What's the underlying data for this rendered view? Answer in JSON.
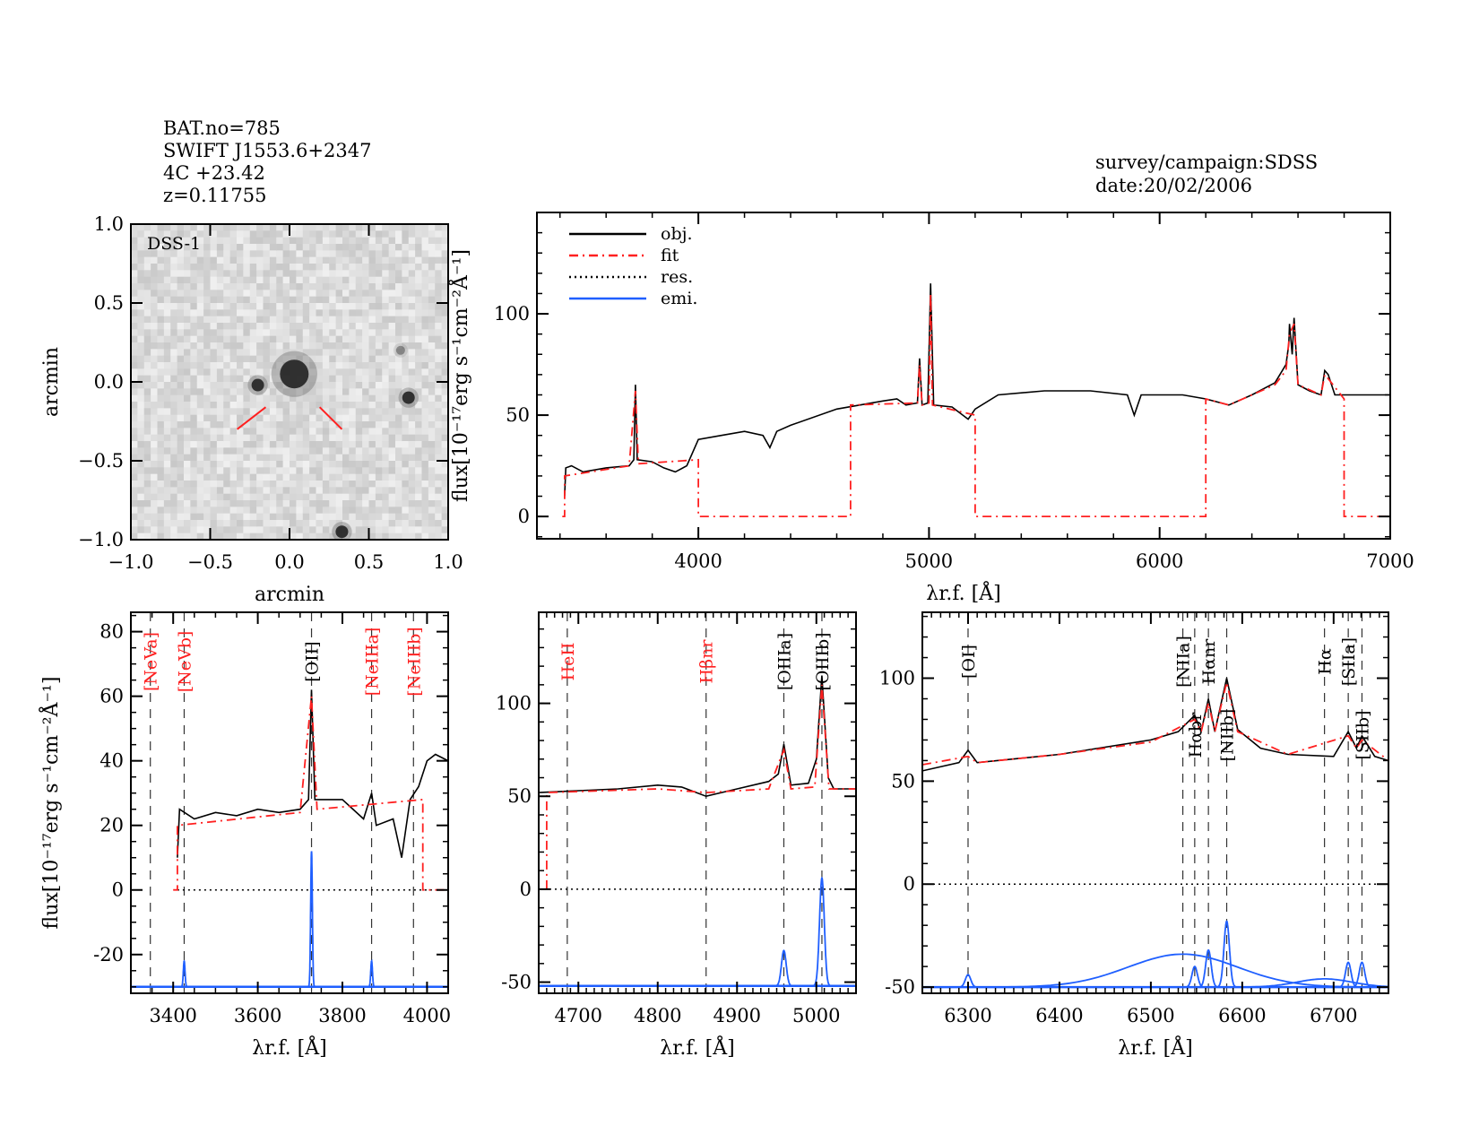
{
  "header": {
    "lines": [
      "BAT.no=785",
      "SWIFT J1553.6+2347",
      "4C +23.42",
      "z=0.11755"
    ],
    "survey": "survey/campaign:SDSS",
    "date": "date:20/02/2006"
  },
  "colors": {
    "obj": "#000000",
    "fit": "#ff2020",
    "res": "#000000",
    "emi": "#1f5fff",
    "red_label": "#ff2020"
  },
  "chart_data": [
    {
      "type": "image",
      "panel": "dss-image",
      "inset_label": "DSS-1",
      "xlabel": "arcmin",
      "ylabel": "arcmin",
      "xlim": [
        -1.0,
        1.0
      ],
      "ylim": [
        -1.0,
        1.0
      ],
      "xticks": [
        "−1.0",
        "−0.5",
        "0.0",
        "0.5",
        "1.0"
      ],
      "yticks": [
        "−1.0",
        "−0.5",
        "0.0",
        "0.5",
        "1.0"
      ],
      "sources": [
        {
          "x": 0.03,
          "y": 0.05,
          "size": "large"
        },
        {
          "x": -0.2,
          "y": -0.02,
          "size": "small"
        },
        {
          "x": 0.75,
          "y": -0.1,
          "size": "small"
        },
        {
          "x": 0.7,
          "y": 0.2,
          "size": "faint"
        },
        {
          "x": 0.33,
          "y": -0.95,
          "size": "small"
        }
      ],
      "markers": "red-tick-marks"
    },
    {
      "type": "line",
      "panel": "full-spectrum",
      "xlabel": "λr.f. [Å]",
      "ylabel": "flux[10⁻¹⁷erg s⁻¹cm⁻²Å⁻¹]",
      "xlim": [
        3300,
        7000
      ],
      "ylim": [
        -11,
        150
      ],
      "xticks": [
        4000,
        5000,
        6000,
        7000
      ],
      "yticks": [
        0,
        50,
        100
      ],
      "legend": {
        "placement": "top-left",
        "entries": [
          {
            "name": "obj.",
            "style": "solid",
            "color": "#000000"
          },
          {
            "name": "fit",
            "style": "dash-dot",
            "color": "#ff2020"
          },
          {
            "name": "res.",
            "style": "dotted",
            "color": "#000000"
          },
          {
            "name": "emi.",
            "style": "solid",
            "color": "#1f5fff"
          }
        ]
      },
      "series": [
        {
          "name": "obj.",
          "points": [
            [
              3420,
              10
            ],
            [
              3425,
              24
            ],
            [
              3450,
              25
            ],
            [
              3500,
              22
            ],
            [
              3600,
              24
            ],
            [
              3700,
              25
            ],
            [
              3720,
              28
            ],
            [
              3727,
              65
            ],
            [
              3735,
              28
            ],
            [
              3800,
              27
            ],
            [
              3850,
              24
            ],
            [
              3900,
              22
            ],
            [
              3950,
              25
            ],
            [
              4000,
              38
            ],
            [
              4100,
              40
            ],
            [
              4200,
              42
            ],
            [
              4280,
              40
            ],
            [
              4310,
              34
            ],
            [
              4340,
              42
            ],
            [
              4400,
              45
            ],
            [
              4600,
              53
            ],
            [
              4800,
              57
            ],
            [
              4861,
              58
            ],
            [
              4900,
              55
            ],
            [
              4950,
              56
            ],
            [
              4959,
              78
            ],
            [
              4970,
              55
            ],
            [
              4995,
              56
            ],
            [
              5007,
              115
            ],
            [
              5020,
              55
            ],
            [
              5100,
              54
            ],
            [
              5170,
              48
            ],
            [
              5200,
              53
            ],
            [
              5300,
              60
            ],
            [
              5500,
              62
            ],
            [
              5700,
              62
            ],
            [
              5860,
              60
            ],
            [
              5890,
              50
            ],
            [
              5920,
              60
            ],
            [
              6100,
              60
            ],
            [
              6200,
              58
            ],
            [
              6300,
              55
            ],
            [
              6400,
              60
            ],
            [
              6500,
              66
            ],
            [
              6548,
              75
            ],
            [
              6560,
              85
            ],
            [
              6563,
              95
            ],
            [
              6575,
              80
            ],
            [
              6583,
              98
            ],
            [
              6600,
              65
            ],
            [
              6650,
              62
            ],
            [
              6700,
              60
            ],
            [
              6716,
              72
            ],
            [
              6731,
              70
            ],
            [
              6760,
              60
            ],
            [
              7000,
              60
            ]
          ]
        },
        {
          "name": "fit",
          "points": [
            [
              3410,
              0
            ],
            [
              3420,
              0
            ],
            [
              3420,
              20
            ],
            [
              3700,
              25
            ],
            [
              3727,
              62
            ],
            [
              3740,
              26
            ],
            [
              4000,
              28
            ],
            [
              4000,
              0
            ],
            [
              4660,
              0
            ],
            [
              4660,
              55
            ],
            [
              4950,
              56
            ],
            [
              4959,
              75
            ],
            [
              4970,
              55
            ],
            [
              5000,
              56
            ],
            [
              5007,
              110
            ],
            [
              5015,
              55
            ],
            [
              5200,
              50
            ],
            [
              5200,
              0
            ],
            [
              6200,
              0
            ],
            [
              6200,
              58
            ],
            [
              6300,
              55
            ],
            [
              6500,
              65
            ],
            [
              6548,
              72
            ],
            [
              6563,
              90
            ],
            [
              6583,
              95
            ],
            [
              6600,
              65
            ],
            [
              6700,
              60
            ],
            [
              6716,
              70
            ],
            [
              6731,
              68
            ],
            [
              6800,
              58
            ],
            [
              6800,
              0
            ],
            [
              7000,
              0
            ]
          ]
        }
      ]
    },
    {
      "type": "line",
      "panel": "zoom-oii",
      "xlabel": "λr.f. [Å]",
      "ylabel": "flux[10⁻¹⁷erg s⁻¹cm⁻²Å⁻¹]",
      "xlim": [
        3300,
        4050
      ],
      "ylim": [
        -32,
        86
      ],
      "xticks": [
        3400,
        3600,
        3800,
        4000
      ],
      "yticks": [
        -20,
        0,
        20,
        40,
        60,
        80
      ],
      "lines": [
        {
          "x": 3346,
          "label": "[NeVa]",
          "color": "red"
        },
        {
          "x": 3426,
          "label": "[NeVb]",
          "color": "red"
        },
        {
          "x": 3727,
          "label": "[OII]",
          "color": "black"
        },
        {
          "x": 3869,
          "label": "[NeIIIa]",
          "color": "red"
        },
        {
          "x": 3968,
          "label": "[NeIIIb]",
          "color": "red"
        }
      ],
      "obj": [
        [
          3410,
          10
        ],
        [
          3415,
          25
        ],
        [
          3450,
          22
        ],
        [
          3500,
          24
        ],
        [
          3550,
          23
        ],
        [
          3600,
          25
        ],
        [
          3650,
          24
        ],
        [
          3700,
          25
        ],
        [
          3720,
          28
        ],
        [
          3727,
          62
        ],
        [
          3735,
          28
        ],
        [
          3800,
          28
        ],
        [
          3850,
          22
        ],
        [
          3869,
          30
        ],
        [
          3880,
          20
        ],
        [
          3920,
          22
        ],
        [
          3940,
          10
        ],
        [
          3960,
          28
        ],
        [
          3980,
          32
        ],
        [
          4000,
          40
        ],
        [
          4020,
          42
        ],
        [
          4050,
          40
        ]
      ],
      "fit": [
        [
          3400,
          0
        ],
        [
          3410,
          0
        ],
        [
          3410,
          20
        ],
        [
          3700,
          24
        ],
        [
          3727,
          60
        ],
        [
          3740,
          25
        ],
        [
          3990,
          28
        ],
        [
          3990,
          0
        ],
        [
          4050,
          0
        ]
      ],
      "res": [
        [
          3410,
          0
        ],
        [
          4050,
          0
        ]
      ],
      "emi": {
        "baseline": -30,
        "lines": [
          {
            "center": 3426,
            "amp": 8,
            "sigma": 2
          },
          {
            "center": 3727,
            "amp": 42,
            "sigma": 2
          },
          {
            "center": 3869,
            "amp": 8,
            "sigma": 2
          }
        ]
      }
    },
    {
      "type": "line",
      "panel": "zoom-oiii",
      "xlabel": "λr.f. [Å]",
      "ylabel": "",
      "xlim": [
        4650,
        5050
      ],
      "ylim": [
        -56,
        149
      ],
      "xticks": [
        4700,
        4800,
        4900,
        5000
      ],
      "yticks": [
        -50,
        0,
        50,
        100
      ],
      "lines": [
        {
          "x": 4686,
          "label": "HeII",
          "color": "red"
        },
        {
          "x": 4861,
          "label": "Hβnr",
          "color": "red"
        },
        {
          "x": 4959,
          "label": "[OIIIa]",
          "color": "black"
        },
        {
          "x": 5007,
          "label": "[OIIIb]",
          "color": "black"
        }
      ],
      "obj": [
        [
          4650,
          52
        ],
        [
          4700,
          53
        ],
        [
          4750,
          54
        ],
        [
          4800,
          56
        ],
        [
          4830,
          55
        ],
        [
          4861,
          50
        ],
        [
          4900,
          54
        ],
        [
          4940,
          58
        ],
        [
          4952,
          62
        ],
        [
          4959,
          78
        ],
        [
          4968,
          56
        ],
        [
          4990,
          57
        ],
        [
          5000,
          70
        ],
        [
          5007,
          115
        ],
        [
          5015,
          60
        ],
        [
          5022,
          54
        ],
        [
          5050,
          54
        ]
      ],
      "fit": [
        [
          4660,
          0
        ],
        [
          4660,
          52
        ],
        [
          4800,
          54
        ],
        [
          4861,
          52
        ],
        [
          4940,
          54
        ],
        [
          4959,
          75
        ],
        [
          4968,
          54
        ],
        [
          4998,
          55
        ],
        [
          5007,
          110
        ],
        [
          5016,
          54
        ],
        [
          5050,
          54
        ]
      ],
      "res": [
        [
          4650,
          0
        ],
        [
          5050,
          0
        ]
      ],
      "emi": {
        "baseline": -52,
        "lines": [
          {
            "center": 4959,
            "amp": 19,
            "sigma": 3
          },
          {
            "center": 5007,
            "amp": 58,
            "sigma": 3
          }
        ]
      }
    },
    {
      "type": "line",
      "panel": "zoom-halpha",
      "xlabel": "λr.f. [Å]",
      "ylabel": "",
      "xlim": [
        6250,
        6760
      ],
      "ylim": [
        -53,
        132
      ],
      "xticks": [
        6300,
        6400,
        6500,
        6600,
        6700
      ],
      "yticks": [
        -50,
        0,
        50,
        100
      ],
      "lines": [
        {
          "x": 6300,
          "label": "[OI]",
          "color": "black"
        },
        {
          "x": 6535,
          "label": "[NIIa]",
          "color": "black"
        },
        {
          "x": 6548,
          "label": "Hαbr",
          "color": "black"
        },
        {
          "x": 6563,
          "label": "Hαnr",
          "color": "black"
        },
        {
          "x": 6583,
          "label": "[NIIb]",
          "color": "black"
        },
        {
          "x": 6690,
          "label": "Hα",
          "color": "black"
        },
        {
          "x": 6716,
          "label": "[SIIa]",
          "color": "black"
        },
        {
          "x": 6731,
          "label": "[SIIb]",
          "color": "black"
        }
      ],
      "obj": [
        [
          6250,
          55
        ],
        [
          6290,
          59
        ],
        [
          6300,
          65
        ],
        [
          6310,
          59
        ],
        [
          6400,
          63
        ],
        [
          6500,
          70
        ],
        [
          6530,
          74
        ],
        [
          6548,
          82
        ],
        [
          6555,
          74
        ],
        [
          6563,
          90
        ],
        [
          6570,
          74
        ],
        [
          6583,
          100
        ],
        [
          6595,
          75
        ],
        [
          6620,
          66
        ],
        [
          6650,
          63
        ],
        [
          6700,
          62
        ],
        [
          6716,
          74
        ],
        [
          6725,
          66
        ],
        [
          6731,
          72
        ],
        [
          6745,
          62
        ],
        [
          6760,
          60
        ]
      ],
      "fit": [
        [
          6250,
          58
        ],
        [
          6300,
          62
        ],
        [
          6310,
          59
        ],
        [
          6400,
          63
        ],
        [
          6500,
          69
        ],
        [
          6548,
          80
        ],
        [
          6555,
          74
        ],
        [
          6563,
          88
        ],
        [
          6570,
          74
        ],
        [
          6583,
          98
        ],
        [
          6595,
          74
        ],
        [
          6650,
          63
        ],
        [
          6716,
          72
        ],
        [
          6725,
          66
        ],
        [
          6731,
          70
        ],
        [
          6760,
          60
        ]
      ],
      "res": [
        [
          6250,
          0
        ],
        [
          6760,
          0
        ]
      ],
      "emi": {
        "baseline": -50,
        "lines": [
          {
            "center": 6535,
            "amp": 16,
            "sigma": 60
          },
          {
            "center": 6690,
            "amp": 4,
            "sigma": 30
          },
          {
            "center": 6300,
            "amp": 6,
            "sigma": 3
          },
          {
            "center": 6548,
            "amp": 10,
            "sigma": 3
          },
          {
            "center": 6563,
            "amp": 18,
            "sigma": 3
          },
          {
            "center": 6583,
            "amp": 32,
            "sigma": 3
          },
          {
            "center": 6716,
            "amp": 12,
            "sigma": 3
          },
          {
            "center": 6731,
            "amp": 12,
            "sigma": 3
          }
        ]
      }
    }
  ]
}
